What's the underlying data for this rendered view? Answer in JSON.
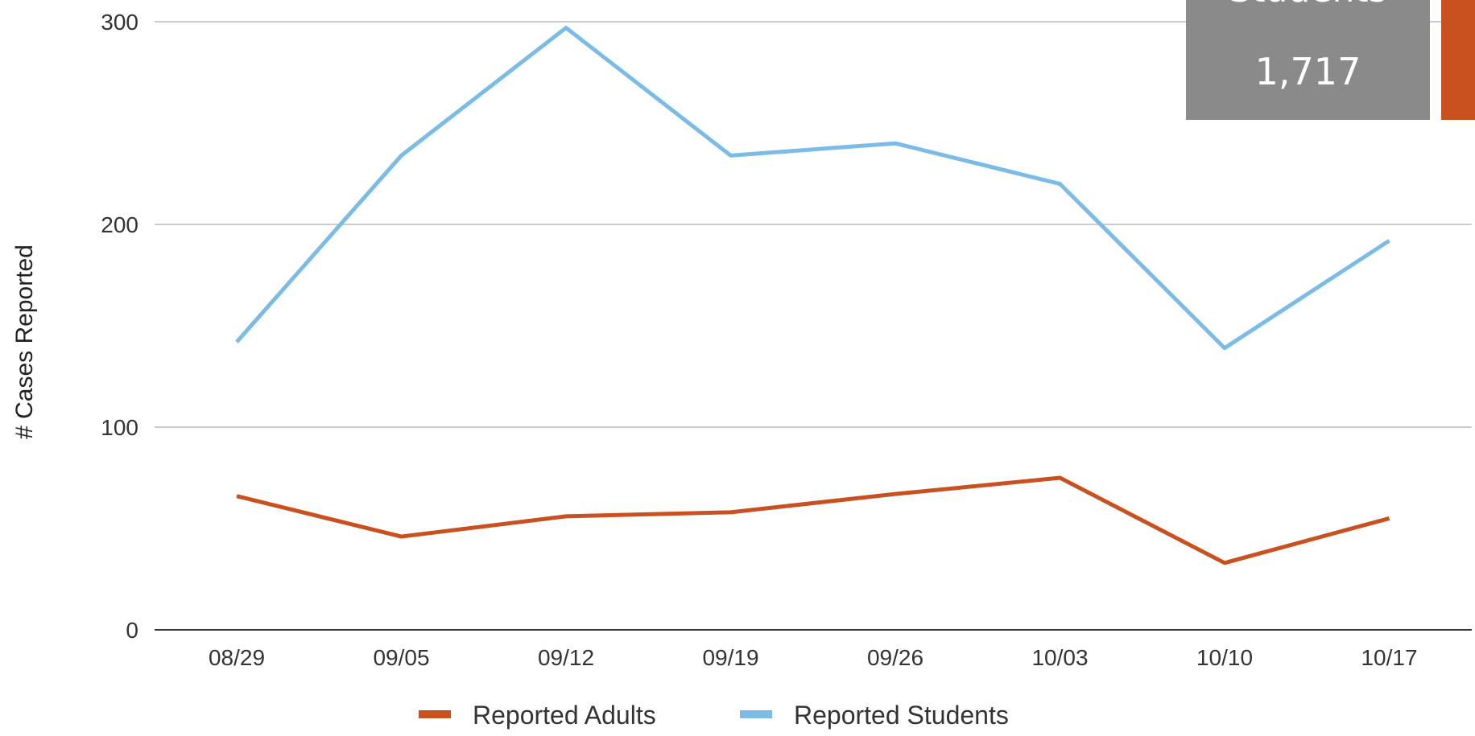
{
  "chart_data": {
    "type": "line",
    "title": "",
    "xlabel": "",
    "ylabel": "# Cases Reported",
    "categories": [
      "08/29",
      "09/05",
      "09/12",
      "09/19",
      "09/26",
      "10/03",
      "10/10",
      "10/17"
    ],
    "ylim": [
      0,
      300
    ],
    "yticks": [
      0,
      100,
      200,
      300
    ],
    "grid": true,
    "legend_position": "bottom",
    "series": [
      {
        "name": "Reported Adults",
        "color": "#c8511f",
        "values": [
          66,
          46,
          56,
          58,
          67,
          75,
          33,
          55
        ]
      },
      {
        "name": "Reported Students",
        "color": "#7bbce6",
        "values": [
          142,
          234,
          297,
          234,
          240,
          220,
          139,
          192
        ]
      }
    ]
  },
  "stat_box": {
    "label": "Students",
    "value": "1,717",
    "background": "#8a8a8a",
    "accent_color": "#c8511f"
  }
}
